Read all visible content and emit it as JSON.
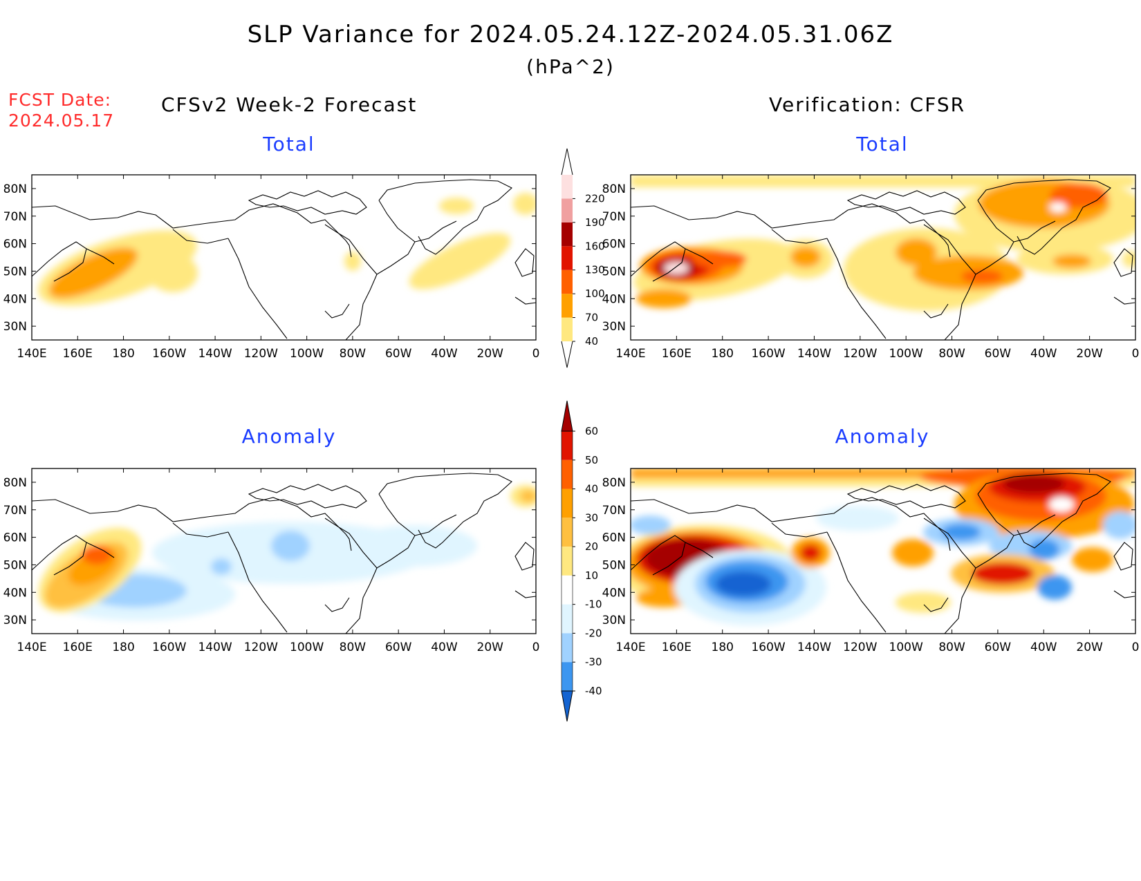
{
  "title": "SLP Variance for 2024.05.24.12Z-2024.05.31.06Z",
  "units": "(hPa^2)",
  "fcst_label": "FCST Date:",
  "fcst_date": "2024.05.17",
  "left_heading": "CFSv2 Week-2 Forecast",
  "right_heading": "Verification: CFSR",
  "panels": [
    {
      "id": "fcst-total",
      "subtitle": "Total"
    },
    {
      "id": "verif-total",
      "subtitle": "Total"
    },
    {
      "id": "fcst-anomaly",
      "subtitle": "Anomaly"
    },
    {
      "id": "verif-anomaly",
      "subtitle": "Anomaly"
    }
  ],
  "lon_ticks": [
    "140E",
    "160E",
    "180",
    "160W",
    "140W",
    "120W",
    "100W",
    "80W",
    "60W",
    "40W",
    "20W",
    "0"
  ],
  "lat_ticks": [
    "80N",
    "70N",
    "60N",
    "50N",
    "40N",
    "30N"
  ],
  "total_colorbar": {
    "levels": [
      "40",
      "70",
      "100",
      "130",
      "160",
      "190",
      "220"
    ],
    "colors": [
      "#ffe880",
      "#ffa000",
      "#ff6000",
      "#e11400",
      "#a50000",
      "#f0a0a0",
      "#fde0e0"
    ]
  },
  "anomaly_colorbar": {
    "levels": [
      "60",
      "50",
      "40",
      "30",
      "20",
      "10",
      "-10",
      "-20",
      "-30",
      "-40"
    ],
    "colors": [
      "#a50000",
      "#e11400",
      "#ff6000",
      "#ffa000",
      "#ffc040",
      "#ffe880",
      "#ffffff",
      "#e0f5ff",
      "#a0d2ff",
      "#3c96f0",
      "#1464d2"
    ]
  }
}
